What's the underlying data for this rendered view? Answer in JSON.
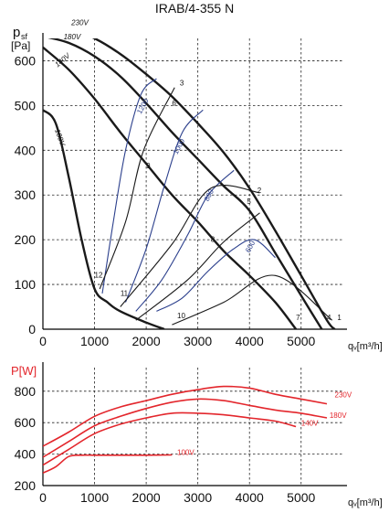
{
  "chart_data": [
    {
      "type": "line",
      "title": "IRAB/4-355 N",
      "ylabel_main": "p",
      "ylabel_sub": "sf",
      "ylabel_unit": "[Pa]",
      "xlabel": "qᵥ[m³/h]",
      "xlim": [
        0,
        5800
      ],
      "ylim": [
        0,
        650
      ],
      "xticks": [
        0,
        1000,
        2000,
        3000,
        4000,
        5000
      ],
      "yticks": [
        0,
        100,
        200,
        300,
        400,
        500,
        600
      ],
      "grid": true,
      "series": [
        {
          "name": "230V",
          "color": "#1a1a1a",
          "kind": "fan",
          "points": [
            [
              0,
              680
            ],
            [
              500,
              670
            ],
            [
              1000,
              650
            ],
            [
              1500,
              615
            ],
            [
              2000,
              570
            ],
            [
              2500,
              520
            ],
            [
              3000,
              460
            ],
            [
              3500,
              395
            ],
            [
              4000,
              315
            ],
            [
              4500,
              220
            ],
            [
              5000,
              120
            ],
            [
              5500,
              20
            ],
            [
              5650,
              0
            ]
          ]
        },
        {
          "name": "180V",
          "color": "#1a1a1a",
          "kind": "fan",
          "points": [
            [
              0,
              655
            ],
            [
              500,
              640
            ],
            [
              1000,
              610
            ],
            [
              1500,
              565
            ],
            [
              2000,
              505
            ],
            [
              2500,
              440
            ],
            [
              3000,
              380
            ],
            [
              3500,
              320
            ],
            [
              4000,
              265
            ],
            [
              4500,
              170
            ],
            [
              5000,
              75
            ],
            [
              5400,
              0
            ]
          ]
        },
        {
          "name": "140V",
          "color": "#1a1a1a",
          "kind": "fan",
          "points": [
            [
              0,
              630
            ],
            [
              500,
              580
            ],
            [
              1000,
              515
            ],
            [
              1500,
              440
            ],
            [
              2000,
              370
            ],
            [
              2500,
              300
            ],
            [
              3000,
              240
            ],
            [
              3500,
              175
            ],
            [
              4000,
              120
            ],
            [
              4500,
              60
            ],
            [
              4900,
              0
            ]
          ]
        },
        {
          "name": "100V",
          "color": "#1a1a1a",
          "kind": "fan",
          "points": [
            [
              0,
              490
            ],
            [
              250,
              460
            ],
            [
              500,
              340
            ],
            [
              750,
              200
            ],
            [
              1000,
              90
            ],
            [
              1250,
              60
            ],
            [
              1500,
              40
            ],
            [
              2000,
              15
            ],
            [
              2350,
              0
            ]
          ]
        },
        {
          "name": "",
          "color": "#2b3f8c",
          "kind": "rpm",
          "points": [
            [
              1150,
              80
            ],
            [
              1350,
              230
            ],
            [
              1600,
              400
            ],
            [
              1900,
              525
            ],
            [
              2200,
              560
            ]
          ]
        },
        {
          "name": "",
          "color": "#2b3f8c",
          "kind": "rpm",
          "points": [
            [
              1600,
              60
            ],
            [
              2000,
              180
            ],
            [
              2350,
              320
            ],
            [
              2700,
              440
            ],
            [
              3100,
              490
            ]
          ]
        },
        {
          "name": "",
          "color": "#2b3f8c",
          "kind": "rpm",
          "points": [
            [
              1800,
              40
            ],
            [
              2300,
              110
            ],
            [
              2800,
              210
            ],
            [
              3200,
              300
            ],
            [
              3700,
              355
            ]
          ]
        },
        {
          "name": "",
          "color": "#2b3f8c",
          "kind": "rpm",
          "points": [
            [
              2200,
              40
            ],
            [
              2700,
              70
            ],
            [
              3200,
              130
            ],
            [
              3700,
              180
            ],
            [
              4100,
              200
            ],
            [
              4500,
              160
            ]
          ]
        },
        {
          "name": "",
          "color": "#1a1a1a",
          "kind": "system",
          "points": [
            [
              1100,
              90
            ],
            [
              1600,
              240
            ],
            [
              1950,
              400
            ],
            [
              2550,
              540
            ]
          ]
        },
        {
          "name": "",
          "color": "#1a1a1a",
          "kind": "system",
          "points": [
            [
              1500,
              50
            ],
            [
              2500,
              190
            ],
            [
              3250,
              315
            ],
            [
              4200,
              305
            ]
          ]
        },
        {
          "name": "",
          "color": "#1a1a1a",
          "kind": "system",
          "points": [
            [
              1800,
              20
            ],
            [
              2800,
              110
            ],
            [
              3500,
              195
            ],
            [
              4200,
              260
            ]
          ]
        },
        {
          "name": "",
          "color": "#1a1a1a",
          "kind": "system",
          "points": [
            [
              2500,
              10
            ],
            [
              3500,
              60
            ],
            [
              4500,
              120
            ],
            [
              5600,
              20
            ]
          ]
        }
      ],
      "curve_labels": [
        {
          "text": "230V",
          "x": 550,
          "y": 680
        },
        {
          "text": "180V",
          "x": 400,
          "y": 648
        },
        {
          "text": "140V",
          "x": 280,
          "y": 585
        },
        {
          "text": "100V",
          "x": 230,
          "y": 445
        },
        {
          "text": "1200",
          "x": 1900,
          "y": 480
        },
        {
          "text": "1000",
          "x": 2600,
          "y": 390
        },
        {
          "text": "800",
          "x": 3200,
          "y": 285
        },
        {
          "text": "600",
          "x": 4000,
          "y": 170
        }
      ],
      "point_labels": [
        {
          "text": "1",
          "x": 5700,
          "y": 20
        },
        {
          "text": "2",
          "x": 4150,
          "y": 305
        },
        {
          "text": "3",
          "x": 2650,
          "y": 545
        },
        {
          "text": "4",
          "x": 5500,
          "y": 20
        },
        {
          "text": "5",
          "x": 3950,
          "y": 280
        },
        {
          "text": "6",
          "x": 2500,
          "y": 500
        },
        {
          "text": "7",
          "x": 4900,
          "y": 20
        },
        {
          "text": "8",
          "x": 3250,
          "y": 195
        },
        {
          "text": "9",
          "x": 2000,
          "y": 360
        },
        {
          "text": "10",
          "x": 2600,
          "y": 25
        },
        {
          "text": "11",
          "x": 1500,
          "y": 75
        },
        {
          "text": "12",
          "x": 1000,
          "y": 115
        }
      ]
    },
    {
      "type": "line",
      "ylabel": "P[W]",
      "xlabel": "qᵥ[m³/h]",
      "xlim": [
        0,
        5800
      ],
      "ylim": [
        200,
        950
      ],
      "xticks": [
        0,
        1000,
        2000,
        3000,
        4000,
        5000
      ],
      "yticks": [
        200,
        400,
        600,
        800
      ],
      "grid": true,
      "series": [
        {
          "name": "230V",
          "color": "#e3262c",
          "points": [
            [
              0,
              450
            ],
            [
              500,
              540
            ],
            [
              1000,
              640
            ],
            [
              1500,
              700
            ],
            [
              2000,
              740
            ],
            [
              2500,
              780
            ],
            [
              3000,
              810
            ],
            [
              3500,
              830
            ],
            [
              4000,
              820
            ],
            [
              4500,
              780
            ],
            [
              5000,
              750
            ],
            [
              5500,
              720
            ]
          ]
        },
        {
          "name": "180V",
          "color": "#e3262c",
          "points": [
            [
              0,
              380
            ],
            [
              500,
              480
            ],
            [
              1000,
              580
            ],
            [
              1500,
              640
            ],
            [
              2000,
              690
            ],
            [
              2500,
              730
            ],
            [
              3000,
              750
            ],
            [
              3500,
              740
            ],
            [
              4000,
              710
            ],
            [
              4500,
              680
            ],
            [
              5000,
              660
            ],
            [
              5500,
              630
            ]
          ]
        },
        {
          "name": "140V",
          "color": "#e3262c",
          "points": [
            [
              0,
              330
            ],
            [
              500,
              430
            ],
            [
              1000,
              530
            ],
            [
              1500,
              590
            ],
            [
              2000,
              630
            ],
            [
              2500,
              660
            ],
            [
              3000,
              660
            ],
            [
              3500,
              650
            ],
            [
              4000,
              630
            ],
            [
              4500,
              610
            ],
            [
              4900,
              575
            ]
          ]
        },
        {
          "name": "100V",
          "color": "#e3262c",
          "points": [
            [
              0,
              280
            ],
            [
              250,
              320
            ],
            [
              500,
              385
            ],
            [
              750,
              393
            ],
            [
              1000,
              393
            ],
            [
              1500,
              393
            ],
            [
              2000,
              393
            ],
            [
              2500,
              395
            ]
          ]
        }
      ],
      "curve_labels": [
        {
          "text": "230V",
          "x": 5650,
          "y": 760
        },
        {
          "text": "180V",
          "x": 5550,
          "y": 630
        },
        {
          "text": "140V",
          "x": 5000,
          "y": 580
        },
        {
          "text": "100V",
          "x": 2600,
          "y": 395
        }
      ]
    }
  ]
}
